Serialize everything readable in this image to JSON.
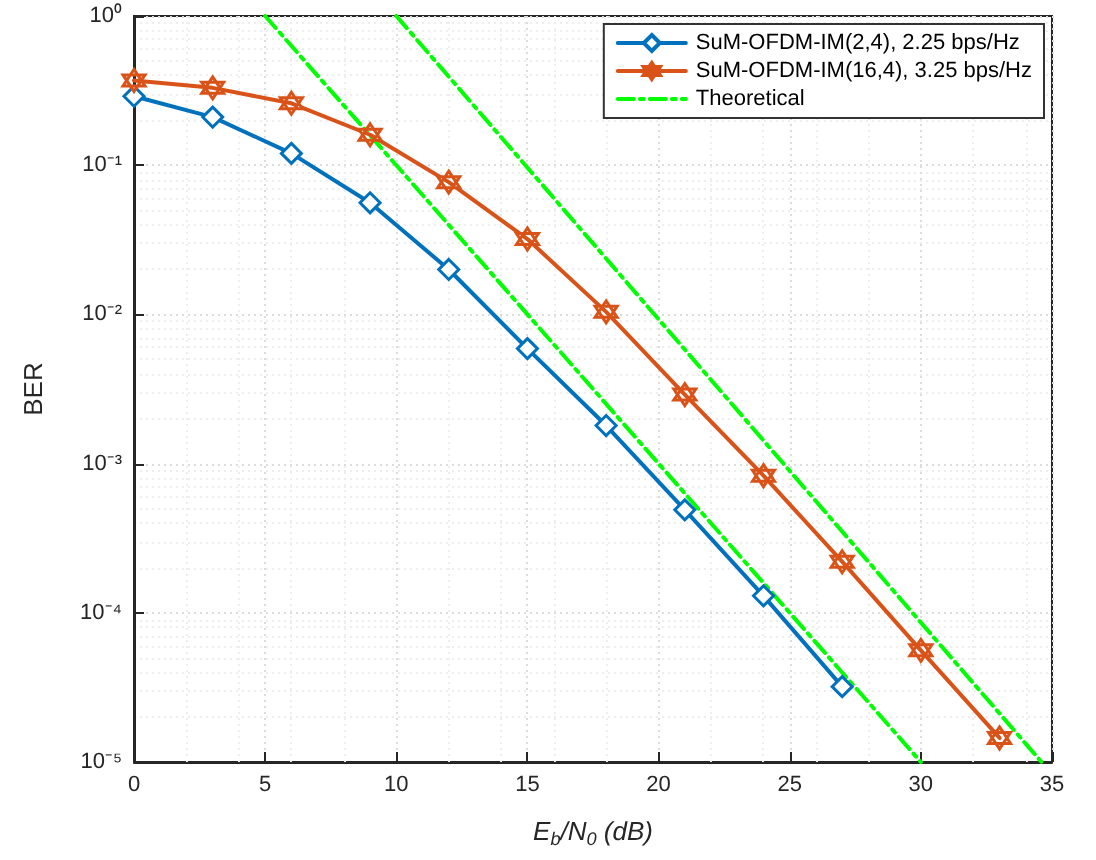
{
  "chart_data": {
    "type": "line",
    "xlabel": "E$_{b}$/N$_{0}$ (dB)",
    "ylabel": "BER",
    "x": [
      0,
      3,
      6,
      9,
      12,
      15,
      18,
      21,
      24,
      27,
      30,
      33
    ],
    "series": [
      {
        "name": "SuM-OFDM-IM(2,4), 2.25 bps/Hz",
        "color": "#0072bd",
        "marker": "diamond",
        "values": [
          0.29,
          0.21,
          0.12,
          0.056,
          0.02,
          0.0059,
          0.0018,
          0.00049,
          0.00013,
          3.2e-05,
          null,
          null
        ]
      },
      {
        "name": "SuM-OFDM-IM(16,4), 3.25 bps/Hz",
        "color": "#d95319",
        "marker": "star",
        "values": [
          0.37,
          0.33,
          0.26,
          0.16,
          0.077,
          0.032,
          0.0104,
          0.0029,
          0.00083,
          0.00022,
          5.6e-05,
          1.45e-05
        ]
      },
      {
        "name": "Theoretical",
        "color": "#00ff00",
        "marker": "none",
        "line_style": "dashed",
        "x": [
          5,
          30
        ],
        "values": [
          1,
          1e-05
        ]
      },
      {
        "color": "#00ff00",
        "marker": "none",
        "line_style": "dashed",
        "x": [
          10,
          34.6
        ],
        "values": [
          1,
          1e-05
        ]
      }
    ],
    "xlim": [
      0,
      35
    ],
    "xticks": [
      0,
      5,
      10,
      15,
      20,
      25,
      30,
      35
    ],
    "ylim": [
      1e-05,
      1
    ],
    "yticks": [
      {
        "value": 1e-05,
        "label": "10⁻⁵"
      },
      {
        "value": 0.0001,
        "label": "10⁻⁴"
      },
      {
        "value": 0.001,
        "label": "10⁻³"
      },
      {
        "value": 0.01,
        "label": "10⁻²"
      },
      {
        "value": 0.1,
        "label": "10⁻¹"
      },
      {
        "value": 1,
        "label": "10⁰"
      }
    ],
    "log": "y",
    "grid": true,
    "legend": "top right"
  }
}
